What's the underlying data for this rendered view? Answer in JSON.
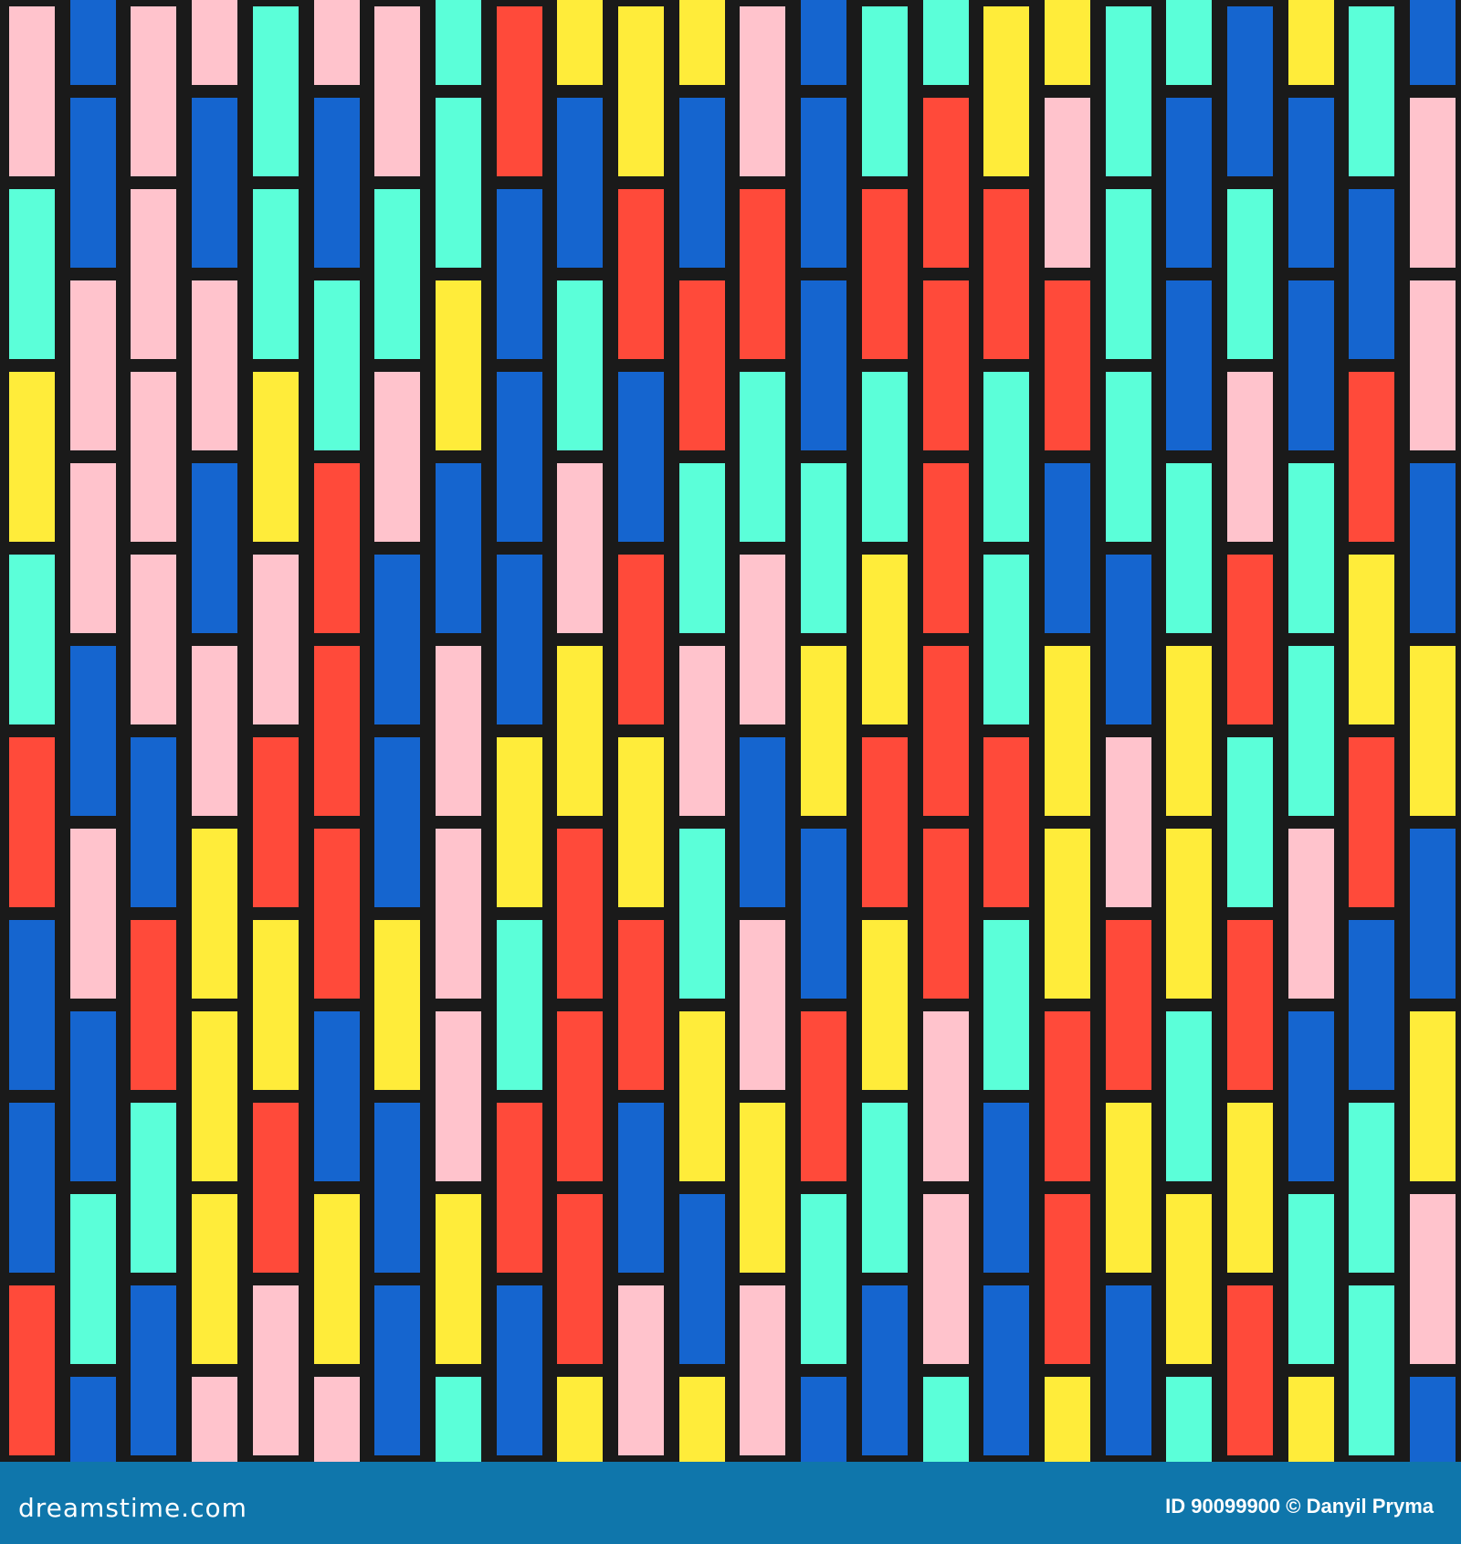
{
  "colors": {
    "pink": "#ffc3cc",
    "blue": "#1565cf",
    "teal": "#5bffd9",
    "yellow": "#ffec3a",
    "red": "#ff4a3a",
    "grout": "#1a1a1a",
    "footer": "#0f76ab"
  },
  "columns": [
    [
      "pink",
      "teal",
      "yellow",
      "teal",
      "red",
      "blue",
      "blue",
      "red"
    ],
    [
      "blue",
      "blue",
      "pink",
      "pink",
      "blue",
      "pink",
      "blue",
      "teal",
      "blue"
    ],
    [
      "pink",
      "pink",
      "pink",
      "pink",
      "blue",
      "red",
      "teal",
      "blue"
    ],
    [
      "pink",
      "blue",
      "pink",
      "blue",
      "pink",
      "yellow",
      "yellow",
      "yellow",
      "pink"
    ],
    [
      "teal",
      "teal",
      "yellow",
      "pink",
      "red",
      "yellow",
      "red",
      "pink"
    ],
    [
      "pink",
      "blue",
      "teal",
      "red",
      "red",
      "red",
      "blue",
      "yellow",
      "pink"
    ],
    [
      "pink",
      "teal",
      "pink",
      "blue",
      "blue",
      "yellow",
      "blue",
      "blue"
    ],
    [
      "teal",
      "teal",
      "yellow",
      "blue",
      "pink",
      "pink",
      "pink",
      "yellow",
      "teal"
    ],
    [
      "red",
      "blue",
      "blue",
      "blue",
      "yellow",
      "teal",
      "red",
      "blue"
    ],
    [
      "yellow",
      "blue",
      "teal",
      "pink",
      "yellow",
      "red",
      "red",
      "red",
      "yellow"
    ],
    [
      "yellow",
      "red",
      "blue",
      "red",
      "yellow",
      "red",
      "blue",
      "pink"
    ],
    [
      "yellow",
      "blue",
      "red",
      "teal",
      "pink",
      "teal",
      "yellow",
      "blue",
      "yellow"
    ],
    [
      "pink",
      "red",
      "teal",
      "pink",
      "blue",
      "pink",
      "yellow",
      "pink"
    ],
    [
      "blue",
      "blue",
      "blue",
      "teal",
      "yellow",
      "blue",
      "red",
      "teal",
      "blue"
    ],
    [
      "teal",
      "red",
      "teal",
      "yellow",
      "red",
      "yellow",
      "teal",
      "blue"
    ],
    [
      "teal",
      "red",
      "red",
      "red",
      "red",
      "red",
      "pink",
      "pink",
      "teal"
    ],
    [
      "yellow",
      "red",
      "teal",
      "teal",
      "red",
      "teal",
      "blue",
      "blue"
    ],
    [
      "yellow",
      "pink",
      "red",
      "blue",
      "yellow",
      "yellow",
      "red",
      "red",
      "yellow"
    ],
    [
      "teal",
      "teal",
      "teal",
      "blue",
      "pink",
      "red",
      "yellow",
      "blue"
    ],
    [
      "teal",
      "blue",
      "blue",
      "teal",
      "yellow",
      "yellow",
      "teal",
      "yellow",
      "teal"
    ],
    [
      "blue",
      "teal",
      "pink",
      "red",
      "teal",
      "red",
      "yellow",
      "red"
    ],
    [
      "yellow",
      "blue",
      "blue",
      "teal",
      "teal",
      "pink",
      "blue",
      "teal",
      "yellow"
    ],
    [
      "teal",
      "blue",
      "red",
      "yellow",
      "red",
      "blue",
      "teal",
      "teal"
    ],
    [
      "blue",
      "pink",
      "pink",
      "blue",
      "yellow",
      "blue",
      "yellow",
      "pink",
      "blue"
    ]
  ],
  "footer": {
    "logo": "dreamstime.com",
    "credit": "ID 90099900 © Danyil  Pryma"
  }
}
